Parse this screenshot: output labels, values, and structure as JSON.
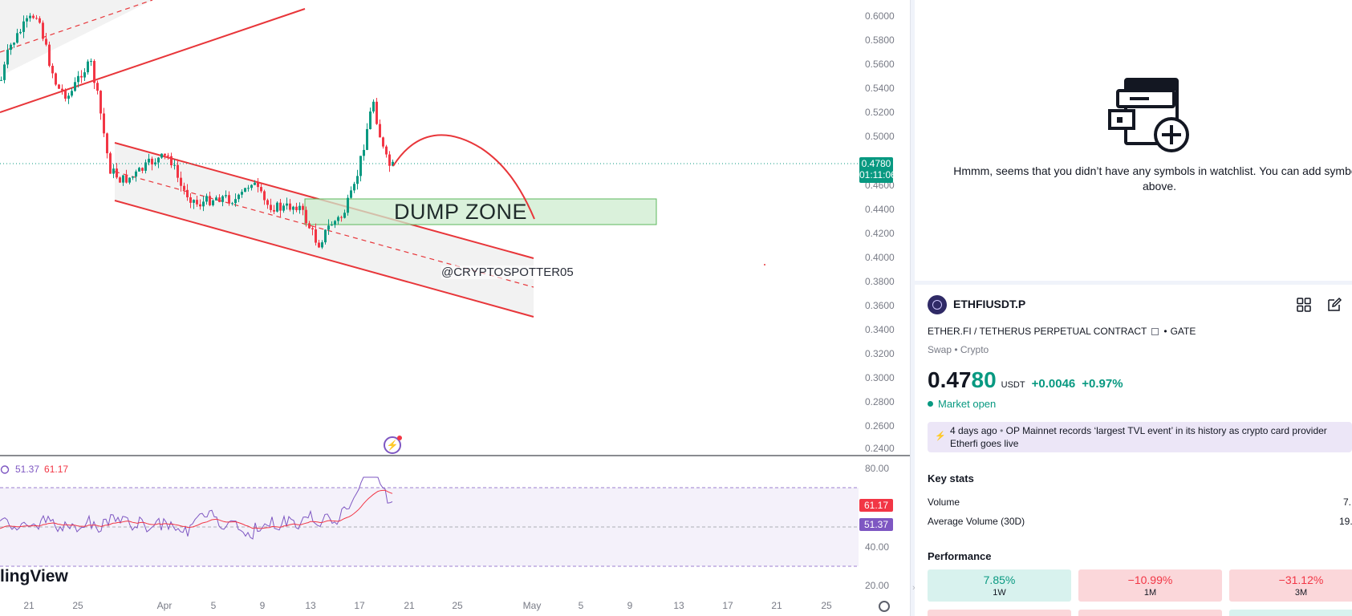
{
  "chart": {
    "price_labels": [
      "0.6000",
      "0.5800",
      "0.5600",
      "0.5400",
      "0.5200",
      "0.5000",
      "0.4600",
      "0.4400",
      "0.4200",
      "0.4000",
      "0.3800",
      "0.3600",
      "0.3400",
      "0.3200",
      "0.3000",
      "0.2800",
      "0.2600",
      "0.2400"
    ],
    "rsi_labels": [
      "80.00",
      "40.00",
      "20.00"
    ],
    "time_labels": [
      "21",
      "25",
      "Apr",
      "5",
      "9",
      "13",
      "17",
      "21",
      "25",
      "May",
      "5",
      "9",
      "13",
      "17",
      "21",
      "25"
    ],
    "last_price": "0.4780",
    "countdown": "01:11:06",
    "dump_zone_label": "DUMP ZONE",
    "watermark": "@CRYPTOSPOTTER05",
    "logo_text": "lingView",
    "colors": {
      "up": "#089981",
      "down": "#f23645",
      "rsi": "#7e57c2",
      "channel": "#e8363a"
    }
  },
  "rsi": {
    "value_rsi": "51.37",
    "value_ma": "61.17"
  },
  "sidebar": {
    "watchlist_empty": "Hmmm, seems that you didn’t have any symbols in watchlist. You can add symbols above.",
    "symbol": "ETHFIUSDT.P",
    "full_name": "ETHER.FI / TETHERUS PERPETUAL CONTRACT",
    "exchange_sep": "•",
    "exchange": "GATE",
    "sub_type": "Swap • Crypto",
    "price_main": "0.47",
    "price_tail": "80",
    "currency": "USDT",
    "change_abs": "+0.0046",
    "change_pct": "+0.97%",
    "market_status": "Market open",
    "news_time": "4 days ago",
    "news_sep": "•",
    "news_headline": "OP Mainnet records ‘largest TVL event’ in its history as crypto card provider Etherfi goes live",
    "key_stats_title": "Key stats",
    "stats": [
      {
        "label": "Volume",
        "value": "7."
      },
      {
        "label": "Average Volume (30D)",
        "value": "19."
      }
    ],
    "performance_title": "Performance",
    "performance": [
      {
        "value": "7.85%",
        "period": "1W",
        "bg": "#d8f2ee",
        "color": "#089981"
      },
      {
        "value": "−10.99%",
        "period": "1M",
        "bg": "#fbd7da",
        "color": "#f23645"
      },
      {
        "value": "−31.12%",
        "period": "3M",
        "bg": "#fbd7da",
        "color": "#f23645"
      }
    ]
  }
}
